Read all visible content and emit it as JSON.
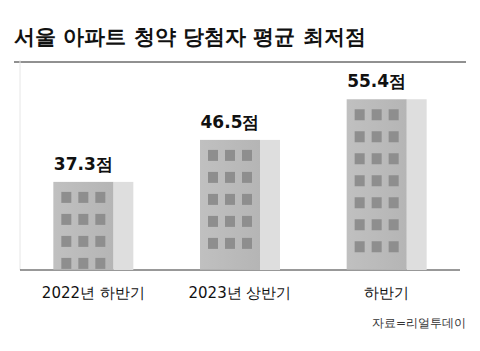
{
  "chart_data": {
    "type": "bar",
    "title": "서울 아파트 청약 당첨자 평균 최저점",
    "categories": [
      "2022년 하반기",
      "2023년 상반기",
      "하반기"
    ],
    "values": [
      37.3,
      46.5,
      55.4
    ],
    "value_labels": [
      "37.3점",
      "46.5점",
      "55.4점"
    ],
    "data_labels": true,
    "color": "#b5b5b5",
    "ylim": [
      18,
      64
    ],
    "grid": false,
    "tick_labels": "x",
    "source": "자료=리얼투데이"
  }
}
